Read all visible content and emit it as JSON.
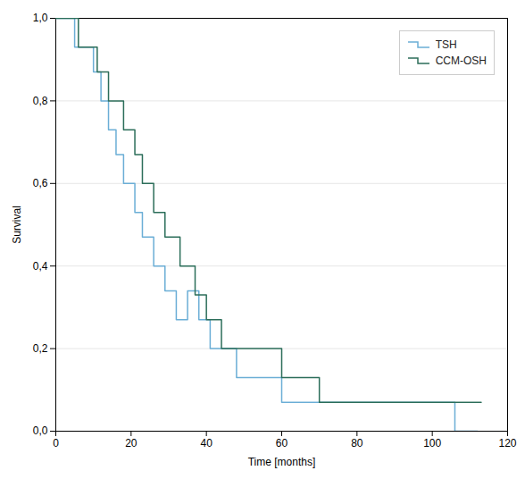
{
  "chart_data": {
    "type": "step",
    "xlabel": "Time [months]",
    "ylabel": "Survival",
    "xlim": [
      0,
      120
    ],
    "ylim": [
      0.0,
      1.0
    ],
    "xticks": [
      0,
      20,
      40,
      60,
      80,
      100,
      120
    ],
    "yticks": [
      {
        "value": 0.0,
        "label": "0,0"
      },
      {
        "value": 0.2,
        "label": "0,2"
      },
      {
        "value": 0.4,
        "label": "0,4"
      },
      {
        "value": 0.6,
        "label": "0,6"
      },
      {
        "value": 0.8,
        "label": "0,8"
      },
      {
        "value": 1.0,
        "label": "1,0"
      }
    ],
    "grid": "y",
    "legend": "upper right",
    "series": [
      {
        "name": "TSH",
        "color": "#6baed6",
        "x": [
          0,
          5,
          5,
          10,
          10,
          12,
          12,
          14,
          14,
          16,
          16,
          18,
          18,
          21,
          21,
          23,
          23,
          26,
          26,
          29,
          29,
          32,
          32,
          35,
          35,
          38,
          38,
          41,
          41,
          48,
          48,
          60,
          60,
          63,
          63,
          106,
          106,
          112
        ],
        "values": [
          1.0,
          1.0,
          0.93,
          0.93,
          0.87,
          0.87,
          0.8,
          0.8,
          0.73,
          0.73,
          0.67,
          0.67,
          0.6,
          0.6,
          0.53,
          0.53,
          0.47,
          0.47,
          0.4,
          0.4,
          0.34,
          0.34,
          0.27,
          0.27,
          0.34,
          0.34,
          0.27,
          0.27,
          0.2,
          0.2,
          0.13,
          0.13,
          0.07,
          0.07,
          0.07,
          0.07,
          0.0,
          0.0
        ]
      },
      {
        "name": "CCM-OSH",
        "color": "#2c6e5a",
        "x": [
          0,
          6,
          6,
          11,
          11,
          14,
          14,
          18,
          18,
          21,
          21,
          23,
          23,
          26,
          26,
          29,
          29,
          33,
          33,
          37,
          37,
          40,
          40,
          44,
          44,
          52,
          52,
          60,
          60,
          70,
          70,
          75,
          75,
          107,
          107,
          113
        ],
        "values": [
          1.0,
          1.0,
          0.93,
          0.93,
          0.87,
          0.87,
          0.8,
          0.8,
          0.73,
          0.73,
          0.67,
          0.67,
          0.6,
          0.6,
          0.53,
          0.53,
          0.47,
          0.47,
          0.4,
          0.4,
          0.33,
          0.33,
          0.27,
          0.27,
          0.2,
          0.2,
          0.2,
          0.2,
          0.13,
          0.13,
          0.07,
          0.07,
          0.07,
          0.07,
          0.07,
          0.07
        ]
      }
    ]
  }
}
